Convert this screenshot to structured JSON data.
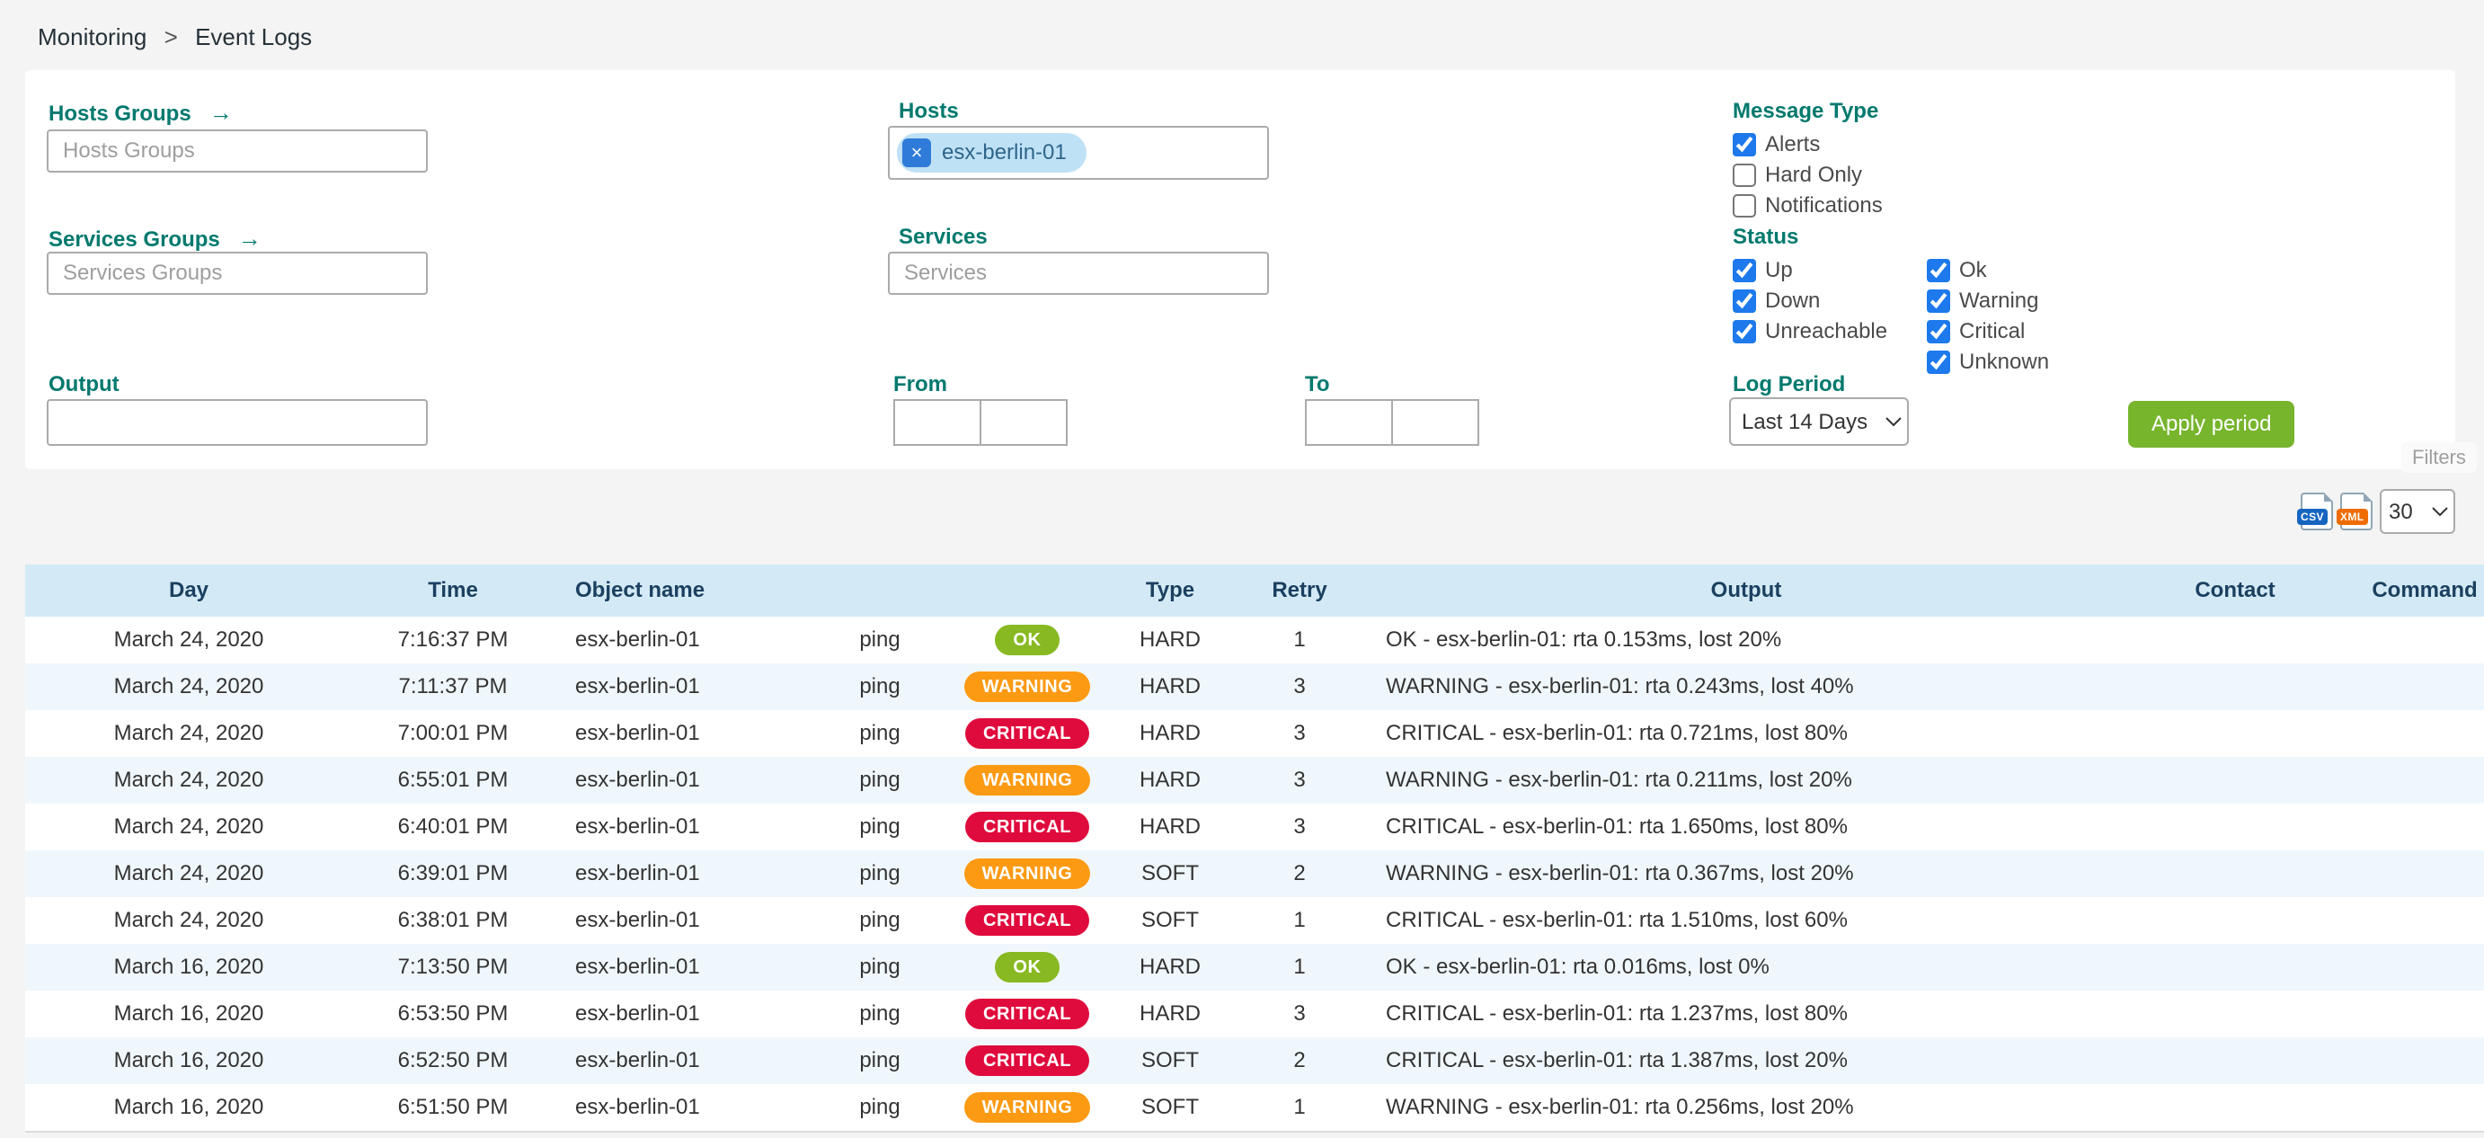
{
  "breadcrumb": {
    "items": [
      "Monitoring",
      "Event Logs"
    ],
    "separator": ">"
  },
  "filters": {
    "hosts_groups": {
      "label": "Hosts Groups",
      "placeholder": "Hosts Groups",
      "arrow_icon": "→"
    },
    "services_groups": {
      "label": "Services Groups",
      "placeholder": "Services Groups",
      "arrow_icon": "→"
    },
    "hosts": {
      "label": "Hosts",
      "chips": [
        "esx-berlin-01"
      ],
      "remove_icon": "×"
    },
    "services": {
      "label": "Services",
      "placeholder": "Services"
    },
    "output": {
      "label": "Output",
      "value": ""
    },
    "from": {
      "label": "From",
      "date": "",
      "time": ""
    },
    "to": {
      "label": "To",
      "date": "",
      "time": ""
    },
    "message_type": {
      "label": "Message Type",
      "options": [
        {
          "label": "Alerts",
          "checked": true
        },
        {
          "label": "Hard Only",
          "checked": false
        },
        {
          "label": "Notifications",
          "checked": false
        }
      ]
    },
    "status": {
      "label": "Status",
      "columns": [
        [
          {
            "label": "Up",
            "checked": true
          },
          {
            "label": "Down",
            "checked": true
          },
          {
            "label": "Unreachable",
            "checked": true
          }
        ],
        [
          {
            "label": "Ok",
            "checked": true
          },
          {
            "label": "Warning",
            "checked": true
          },
          {
            "label": "Critical",
            "checked": true
          },
          {
            "label": "Unknown",
            "checked": true
          }
        ]
      ]
    },
    "log_period": {
      "label": "Log Period",
      "selected": "Last 14 Days",
      "options": [
        "Last 14 Days"
      ]
    },
    "apply_button": "Apply period",
    "filters_tab": "Filters"
  },
  "toolbar": {
    "csv_icon": "CSV",
    "xml_icon": "XML",
    "page_size": {
      "selected": "30",
      "options": [
        "30"
      ]
    }
  },
  "table": {
    "headers": [
      "Day",
      "Time",
      "Object name",
      "",
      "",
      "Type",
      "Retry",
      "Output",
      "Contact",
      "Command"
    ],
    "rows": [
      {
        "day": "March 24, 2020",
        "time": "7:16:37 PM",
        "object": "esx-berlin-01",
        "service": "ping",
        "status": "OK",
        "type": "HARD",
        "retry": "1",
        "output": "OK - esx-berlin-01: rta 0.153ms, lost 20%",
        "contact": "",
        "command": ""
      },
      {
        "day": "March 24, 2020",
        "time": "7:11:37 PM",
        "object": "esx-berlin-01",
        "service": "ping",
        "status": "WARNING",
        "type": "HARD",
        "retry": "3",
        "output": "WARNING - esx-berlin-01: rta 0.243ms, lost 40%",
        "contact": "",
        "command": ""
      },
      {
        "day": "March 24, 2020",
        "time": "7:00:01 PM",
        "object": "esx-berlin-01",
        "service": "ping",
        "status": "CRITICAL",
        "type": "HARD",
        "retry": "3",
        "output": "CRITICAL - esx-berlin-01: rta 0.721ms, lost 80%",
        "contact": "",
        "command": ""
      },
      {
        "day": "March 24, 2020",
        "time": "6:55:01 PM",
        "object": "esx-berlin-01",
        "service": "ping",
        "status": "WARNING",
        "type": "HARD",
        "retry": "3",
        "output": "WARNING - esx-berlin-01: rta 0.211ms, lost 20%",
        "contact": "",
        "command": ""
      },
      {
        "day": "March 24, 2020",
        "time": "6:40:01 PM",
        "object": "esx-berlin-01",
        "service": "ping",
        "status": "CRITICAL",
        "type": "HARD",
        "retry": "3",
        "output": "CRITICAL - esx-berlin-01: rta 1.650ms, lost 80%",
        "contact": "",
        "command": ""
      },
      {
        "day": "March 24, 2020",
        "time": "6:39:01 PM",
        "object": "esx-berlin-01",
        "service": "ping",
        "status": "WARNING",
        "type": "SOFT",
        "retry": "2",
        "output": "WARNING - esx-berlin-01: rta 0.367ms, lost 20%",
        "contact": "",
        "command": ""
      },
      {
        "day": "March 24, 2020",
        "time": "6:38:01 PM",
        "object": "esx-berlin-01",
        "service": "ping",
        "status": "CRITICAL",
        "type": "SOFT",
        "retry": "1",
        "output": "CRITICAL - esx-berlin-01: rta 1.510ms, lost 60%",
        "contact": "",
        "command": ""
      },
      {
        "day": "March 16, 2020",
        "time": "7:13:50 PM",
        "object": "esx-berlin-01",
        "service": "ping",
        "status": "OK",
        "type": "HARD",
        "retry": "1",
        "output": "OK - esx-berlin-01: rta 0.016ms, lost 0%",
        "contact": "",
        "command": ""
      },
      {
        "day": "March 16, 2020",
        "time": "6:53:50 PM",
        "object": "esx-berlin-01",
        "service": "ping",
        "status": "CRITICAL",
        "type": "HARD",
        "retry": "3",
        "output": "CRITICAL - esx-berlin-01: rta 1.237ms, lost 80%",
        "contact": "",
        "command": ""
      },
      {
        "day": "March 16, 2020",
        "time": "6:52:50 PM",
        "object": "esx-berlin-01",
        "service": "ping",
        "status": "CRITICAL",
        "type": "SOFT",
        "retry": "2",
        "output": "CRITICAL - esx-berlin-01: rta 1.387ms, lost 20%",
        "contact": "",
        "command": ""
      },
      {
        "day": "March 16, 2020",
        "time": "6:51:50 PM",
        "object": "esx-berlin-01",
        "service": "ping",
        "status": "WARNING",
        "type": "SOFT",
        "retry": "1",
        "output": "WARNING - esx-berlin-01: rta 0.256ms, lost 20%",
        "contact": "",
        "command": ""
      }
    ]
  },
  "colors": {
    "label_teal": "#00796e",
    "checkbox_blue": "#1d79ec",
    "apply_green": "#77b52d",
    "table_header_bg": "#d3eaf6",
    "row_alt": "#f0f7fc",
    "status_ok": "#88b922",
    "status_warning": "#fd9a13",
    "status_critical": "#e00b3d"
  }
}
